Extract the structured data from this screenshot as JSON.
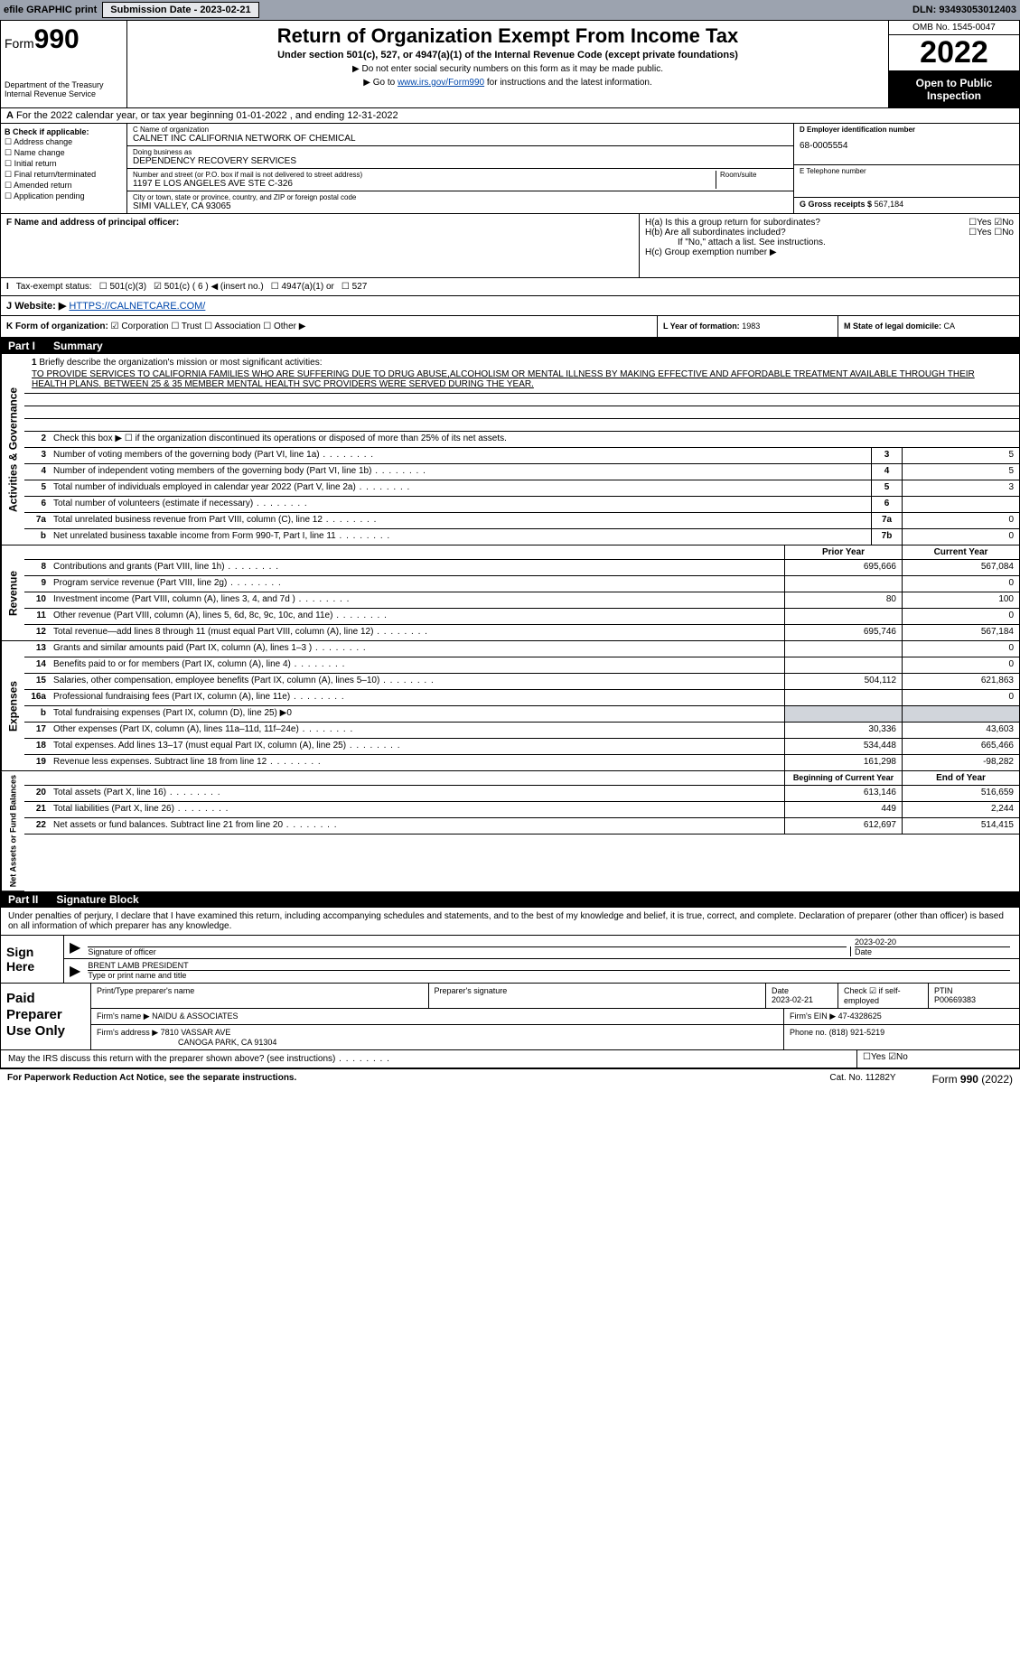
{
  "topbar": {
    "efile": "efile GRAPHIC print",
    "submission_label": "Submission Date - 2023-02-21",
    "dln": "DLN: 93493053012403"
  },
  "header": {
    "form_prefix": "Form",
    "form_num": "990",
    "title": "Return of Organization Exempt From Income Tax",
    "subtitle": "Under section 501(c), 527, or 4947(a)(1) of the Internal Revenue Code (except private foundations)",
    "note1": "▶ Do not enter social security numbers on this form as it may be made public.",
    "note2_pre": "▶ Go to ",
    "note2_link": "www.irs.gov/Form990",
    "note2_post": " for instructions and the latest information.",
    "dept": "Department of the Treasury",
    "irs": "Internal Revenue Service",
    "omb": "OMB No. 1545-0047",
    "year": "2022",
    "otp": "Open to Public Inspection"
  },
  "row_a": "For the 2022 calendar year, or tax year beginning 01-01-2022    , and ending 12-31-2022",
  "col_b": {
    "hdr": "B Check if applicable:",
    "items": [
      "Address change",
      "Name change",
      "Initial return",
      "Final return/terminated",
      "Amended return",
      "Application pending"
    ]
  },
  "col_c": {
    "name_lbl": "C Name of organization",
    "name": "CALNET INC CALIFORNIA NETWORK OF CHEMICAL",
    "dba_lbl": "Doing business as",
    "dba": "DEPENDENCY RECOVERY SERVICES",
    "addr_lbl": "Number and street (or P.O. box if mail is not delivered to street address)",
    "room_lbl": "Room/suite",
    "addr": "1197 E LOS ANGELES AVE STE C-326",
    "city_lbl": "City or town, state or province, country, and ZIP or foreign postal code",
    "city": "SIMI VALLEY, CA  93065"
  },
  "col_d": {
    "ein_lbl": "D Employer identification number",
    "ein": "68-0005554",
    "tel_lbl": "E Telephone number",
    "gross_lbl": "G Gross receipts $",
    "gross": "567,184"
  },
  "row_f": {
    "lbl": "F Name and address of principal officer:"
  },
  "row_h": {
    "ha": "H(a)  Is this a group return for subordinates?",
    "hb": "H(b)  Are all subordinates included?",
    "hb_note": "If \"No,\" attach a list. See instructions.",
    "hc": "H(c)  Group exemption number ▶",
    "yes": "Yes",
    "no": "No"
  },
  "row_i": {
    "lbl": "Tax-exempt status:",
    "o1": "501(c)(3)",
    "o2": "501(c) ( 6 ) ◀ (insert no.)",
    "o3": "4947(a)(1) or",
    "o4": "527"
  },
  "row_j": {
    "lbl": "Website: ▶",
    "url": "HTTPS://CALNETCARE.COM/"
  },
  "row_k": {
    "lbl": "K Form of organization:",
    "o1": "Corporation",
    "o2": "Trust",
    "o3": "Association",
    "o4": "Other ▶"
  },
  "row_l": {
    "lbl": "L Year of formation:",
    "val": "1983"
  },
  "row_m": {
    "lbl": "M State of legal domicile:",
    "val": "CA"
  },
  "part1": {
    "num": "Part I",
    "title": "Summary"
  },
  "briefly": {
    "num": "1",
    "lbl": "Briefly describe the organization's mission or most significant activities:",
    "txt": "TO PROVIDE SERVICES TO CALIFORNIA FAMILIES WHO ARE SUFFERING DUE TO DRUG ABUSE,ALCOHOLISM OR MENTAL ILLNESS BY MAKING EFFECTIVE AND AFFORDABLE TREATMENT AVAILABLE THROUGH THEIR HEALTH PLANS. BETWEEN 25 & 35 MEMBER MENTAL HEALTH SVC PROVIDERS WERE SERVED DURING THE YEAR."
  },
  "gov_lines": [
    {
      "n": "2",
      "t": "Check this box ▶ ☐ if the organization discontinued its operations or disposed of more than 25% of its net assets."
    },
    {
      "n": "3",
      "t": "Number of voting members of the governing body (Part VI, line 1a)",
      "box": "3",
      "v": "5"
    },
    {
      "n": "4",
      "t": "Number of independent voting members of the governing body (Part VI, line 1b)",
      "box": "4",
      "v": "5"
    },
    {
      "n": "5",
      "t": "Total number of individuals employed in calendar year 2022 (Part V, line 2a)",
      "box": "5",
      "v": "3"
    },
    {
      "n": "6",
      "t": "Total number of volunteers (estimate if necessary)",
      "box": "6",
      "v": ""
    },
    {
      "n": "7a",
      "t": "Total unrelated business revenue from Part VIII, column (C), line 12",
      "box": "7a",
      "v": "0"
    },
    {
      "n": "b",
      "t": "Net unrelated business taxable income from Form 990-T, Part I, line 11",
      "box": "7b",
      "v": "0"
    }
  ],
  "py_cy": {
    "py": "Prior Year",
    "cy": "Current Year"
  },
  "rev_lines": [
    {
      "n": "8",
      "t": "Contributions and grants (Part VIII, line 1h)",
      "py": "695,666",
      "cy": "567,084"
    },
    {
      "n": "9",
      "t": "Program service revenue (Part VIII, line 2g)",
      "py": "",
      "cy": "0"
    },
    {
      "n": "10",
      "t": "Investment income (Part VIII, column (A), lines 3, 4, and 7d )",
      "py": "80",
      "cy": "100"
    },
    {
      "n": "11",
      "t": "Other revenue (Part VIII, column (A), lines 5, 6d, 8c, 9c, 10c, and 11e)",
      "py": "",
      "cy": "0"
    },
    {
      "n": "12",
      "t": "Total revenue—add lines 8 through 11 (must equal Part VIII, column (A), line 12)",
      "py": "695,746",
      "cy": "567,184"
    }
  ],
  "exp_lines": [
    {
      "n": "13",
      "t": "Grants and similar amounts paid (Part IX, column (A), lines 1–3 )",
      "py": "",
      "cy": "0"
    },
    {
      "n": "14",
      "t": "Benefits paid to or for members (Part IX, column (A), line 4)",
      "py": "",
      "cy": "0"
    },
    {
      "n": "15",
      "t": "Salaries, other compensation, employee benefits (Part IX, column (A), lines 5–10)",
      "py": "504,112",
      "cy": "621,863"
    },
    {
      "n": "16a",
      "t": "Professional fundraising fees (Part IX, column (A), line 11e)",
      "py": "",
      "cy": "0"
    },
    {
      "n": "b",
      "t": "Total fundraising expenses (Part IX, column (D), line 25) ▶0",
      "shade": true
    },
    {
      "n": "17",
      "t": "Other expenses (Part IX, column (A), lines 11a–11d, 11f–24e)",
      "py": "30,336",
      "cy": "43,603"
    },
    {
      "n": "18",
      "t": "Total expenses. Add lines 13–17 (must equal Part IX, column (A), line 25)",
      "py": "534,448",
      "cy": "665,466"
    },
    {
      "n": "19",
      "t": "Revenue less expenses. Subtract line 18 from line 12",
      "py": "161,298",
      "cy": "-98,282"
    }
  ],
  "na_hdr": {
    "py": "Beginning of Current Year",
    "cy": "End of Year"
  },
  "na_lines": [
    {
      "n": "20",
      "t": "Total assets (Part X, line 16)",
      "py": "613,146",
      "cy": "516,659"
    },
    {
      "n": "21",
      "t": "Total liabilities (Part X, line 26)",
      "py": "449",
      "cy": "2,244"
    },
    {
      "n": "22",
      "t": "Net assets or fund balances. Subtract line 21 from line 20",
      "py": "612,697",
      "cy": "514,415"
    }
  ],
  "part2": {
    "num": "Part II",
    "title": "Signature Block"
  },
  "sig_intro": "Under penalties of perjury, I declare that I have examined this return, including accompanying schedules and statements, and to the best of my knowledge and belief, it is true, correct, and complete. Declaration of preparer (other than officer) is based on all information of which preparer has any knowledge.",
  "sign": {
    "lbl": "Sign Here",
    "sig_of": "Signature of officer",
    "date": "2023-02-20",
    "date_lbl": "Date",
    "name": "BRENT LAMB PRESIDENT",
    "name_lbl": "Type or print name and title"
  },
  "prep": {
    "lbl": "Paid Preparer Use Only",
    "h1": "Print/Type preparer's name",
    "h2": "Preparer's signature",
    "h3": "Date",
    "h3v": "2023-02-21",
    "h4": "Check ☑ if self-employed",
    "h5": "PTIN",
    "h5v": "P00669383",
    "firm_lbl": "Firm's name    ▶",
    "firm": "NAIDU & ASSOCIATES",
    "ein_lbl": "Firm's EIN ▶",
    "ein": "47-4328625",
    "addr_lbl": "Firm's address ▶",
    "addr1": "7810 VASSAR AVE",
    "addr2": "CANOGA PARK, CA  91304",
    "ph_lbl": "Phone no.",
    "ph": "(818) 921-5219"
  },
  "discuss": "May the IRS discuss this return with the preparer shown above? (see instructions)",
  "footer": {
    "l": "For Paperwork Reduction Act Notice, see the separate instructions.",
    "c": "Cat. No. 11282Y",
    "r": "Form 990 (2022)"
  },
  "tabs": {
    "gov": "Activities & Governance",
    "rev": "Revenue",
    "exp": "Expenses",
    "na": "Net Assets or Fund Balances"
  }
}
